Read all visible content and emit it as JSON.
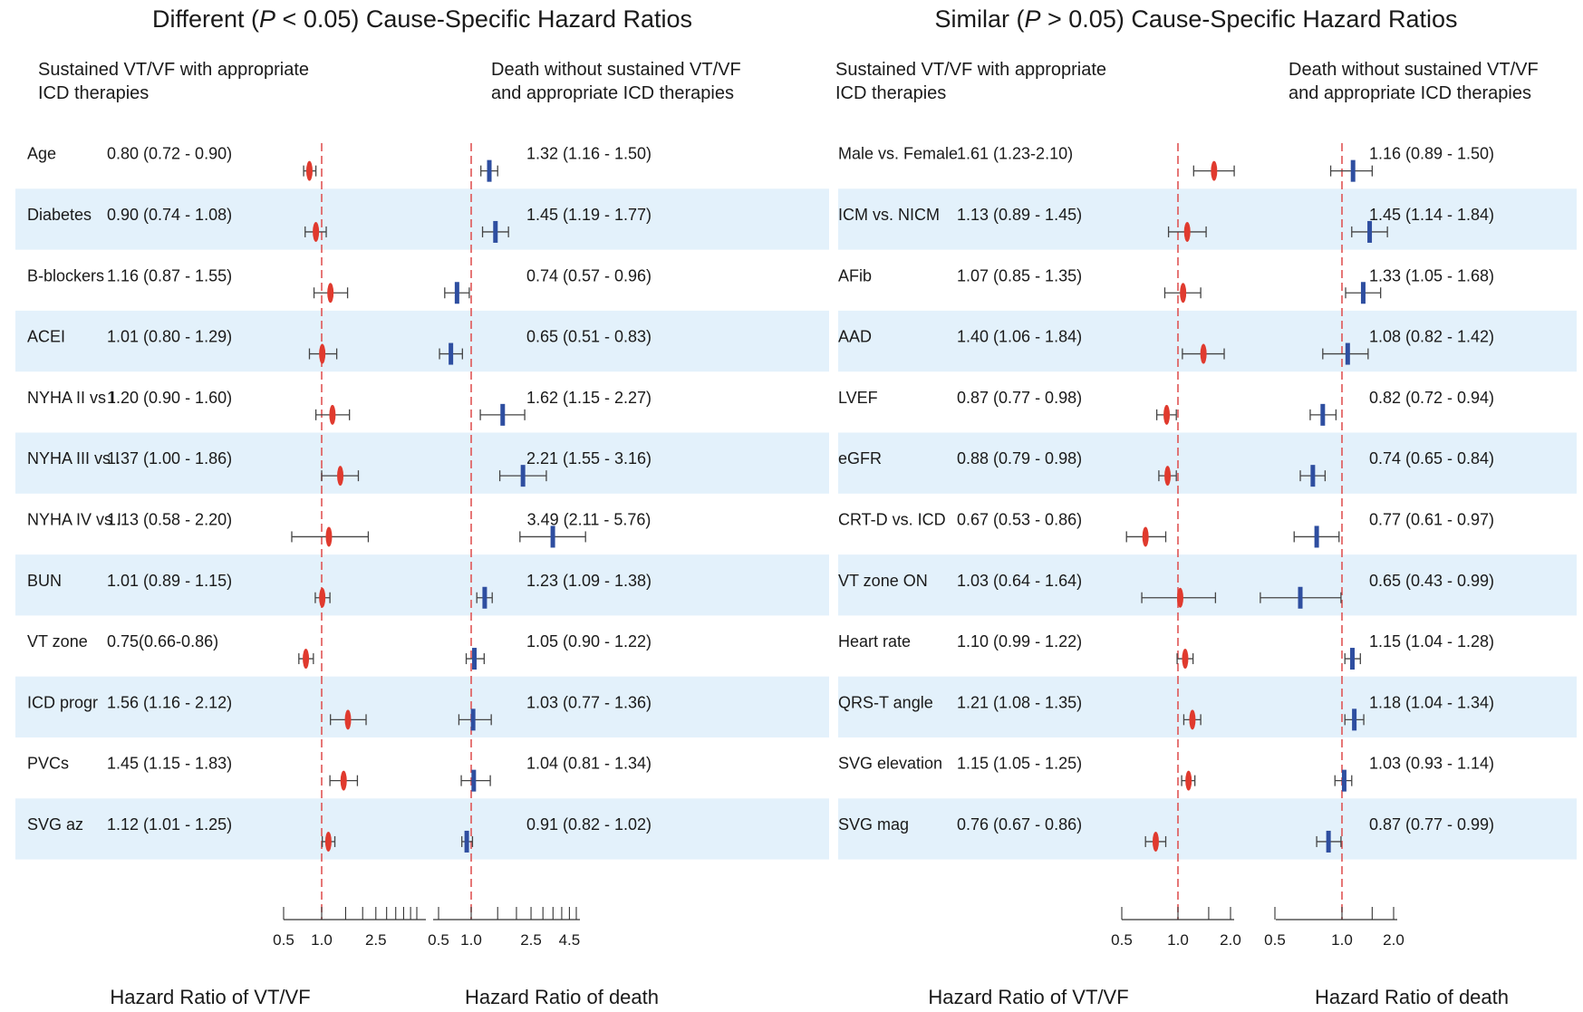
{
  "colors": {
    "band": "#e3f1fb",
    "vtvf": "#e03a2e",
    "death": "#2e4ea0",
    "refline": "#e05555",
    "axis": "#333333"
  },
  "panels": {
    "left_title": {
      "prefix": "Different (",
      "p": "P",
      "suffix": " < 0.05)  Cause-Specific Hazard Ratios"
    },
    "right_title": {
      "prefix": "Similar (",
      "p": "P",
      "suffix": " > 0.05) Cause-Specific Hazard Ratios"
    }
  },
  "headers": {
    "vtvf": [
      "Sustained VT/VF with appropriate",
      "ICD therapies"
    ],
    "death": [
      "Death without sustained VT/VF",
      "and appropriate ICD therapies"
    ]
  },
  "xlabels": {
    "vtvf": "Hazard Ratio of  VT/VF",
    "death": "Hazard Ratio of  death"
  },
  "chart_data": [
    {
      "type": "forest",
      "title": "Different (P < 0.05)  Cause-Specific Hazard Ratios",
      "reference_line": 1.0,
      "vtvf_axis": {
        "ticks": [
          0.5,
          1.0,
          2.5
        ],
        "tick_labels": [
          "0.5",
          "1.0",
          "2.5"
        ]
      },
      "death_axis": {
        "ticks": [
          0.5,
          1.0,
          2.5,
          4.5
        ],
        "tick_labels": [
          "0.5",
          "1.0",
          "2.5",
          "4.5"
        ]
      },
      "rows": [
        {
          "label": "Age",
          "vtvf": {
            "text": "0.80  (0.72  - 0.90)",
            "hr": 0.8,
            "lo": 0.72,
            "hi": 0.9
          },
          "death": {
            "text": "1.32 (1.16 - 1.50)",
            "hr": 1.32,
            "lo": 1.16,
            "hi": 1.5
          }
        },
        {
          "label": "Diabetes",
          "vtvf": {
            "text": "0.90 (0.74 - 1.08)",
            "hr": 0.9,
            "lo": 0.74,
            "hi": 1.08
          },
          "death": {
            "text": "1.45 (1.19 - 1.77)",
            "hr": 1.45,
            "lo": 1.19,
            "hi": 1.77
          }
        },
        {
          "label": "B-blockers",
          "vtvf": {
            "text": "1.16 (0.87 - 1.55)",
            "hr": 1.16,
            "lo": 0.87,
            "hi": 1.55
          },
          "death": {
            "text": "0.74 (0.57 - 0.96)",
            "hr": 0.74,
            "lo": 0.57,
            "hi": 0.96
          }
        },
        {
          "label": "ACEI",
          "vtvf": {
            "text": "1.01 (0.80 - 1.29)",
            "hr": 1.01,
            "lo": 0.8,
            "hi": 1.29
          },
          "death": {
            "text": "0.65 (0.51 - 0.83)",
            "hr": 0.65,
            "lo": 0.51,
            "hi": 0.83
          }
        },
        {
          "label": "NYHA II vs I",
          "vtvf": {
            "text": "1.20 (0.90 - 1.60)",
            "hr": 1.2,
            "lo": 0.9,
            "hi": 1.6
          },
          "death": {
            "text": "1.62 (1.15 - 2.27)",
            "hr": 1.62,
            "lo": 1.15,
            "hi": 2.27
          }
        },
        {
          "label": "NYHA III vs I",
          "vtvf": {
            "text": "1.37 (1.00 - 1.86)",
            "hr": 1.37,
            "lo": 1.0,
            "hi": 1.86
          },
          "death": {
            "text": "2.21 (1.55 - 3.16)",
            "hr": 2.21,
            "lo": 1.55,
            "hi": 3.16
          }
        },
        {
          "label": "NYHA IV vs I",
          "vtvf": {
            "text": "1.13 (0.58 - 2.20)",
            "hr": 1.13,
            "lo": 0.58,
            "hi": 2.2
          },
          "death": {
            "text": "3.49 (2.11 - 5.76)",
            "hr": 3.49,
            "lo": 2.11,
            "hi": 5.76
          }
        },
        {
          "label": "BUN",
          "vtvf": {
            "text": "1.01 (0.89 - 1.15)",
            "hr": 1.01,
            "lo": 0.89,
            "hi": 1.15
          },
          "death": {
            "text": "1.23 (1.09 - 1.38)",
            "hr": 1.23,
            "lo": 1.09,
            "hi": 1.38
          }
        },
        {
          "label": "VT zone",
          "vtvf": {
            "text": "0.75(0.66-0.86)",
            "hr": 0.75,
            "lo": 0.66,
            "hi": 0.86
          },
          "death": {
            "text": "1.05 (0.90 - 1.22)",
            "hr": 1.05,
            "lo": 0.9,
            "hi": 1.22
          }
        },
        {
          "label": "ICD progr",
          "vtvf": {
            "text": "1.56 (1.16 - 2.12)",
            "hr": 1.56,
            "lo": 1.16,
            "hi": 2.12
          },
          "death": {
            "text": "1.03 (0.77 - 1.36)",
            "hr": 1.03,
            "lo": 0.77,
            "hi": 1.36
          }
        },
        {
          "label": "PVCs",
          "vtvf": {
            "text": "1.45 (1.15 - 1.83)",
            "hr": 1.45,
            "lo": 1.15,
            "hi": 1.83
          },
          "death": {
            "text": "1.04 (0.81 - 1.34)",
            "hr": 1.04,
            "lo": 0.81,
            "hi": 1.34
          }
        },
        {
          "label": "SVG az",
          "vtvf": {
            "text": "1.12 (1.01 - 1.25)",
            "hr": 1.12,
            "lo": 1.01,
            "hi": 1.25
          },
          "death": {
            "text": "0.91 (0.82 - 1.02)",
            "hr": 0.91,
            "lo": 0.82,
            "hi": 1.02
          }
        }
      ]
    },
    {
      "type": "forest",
      "title": "Similar (P > 0.05) Cause-Specific Hazard Ratios",
      "reference_line": 1.0,
      "vtvf_axis": {
        "ticks": [
          0.5,
          1.0,
          2.0
        ],
        "tick_labels": [
          "0.5",
          "1.0",
          "2.0"
        ]
      },
      "death_axis": {
        "ticks": [
          0.5,
          1.0,
          2.0
        ],
        "tick_labels": [
          "0.5",
          "1.0",
          "2.0"
        ]
      },
      "rows": [
        {
          "label": "Male vs. Female",
          "vtvf": {
            "text": "1.61 (1.23-2.10)",
            "hr": 1.61,
            "lo": 1.23,
            "hi": 2.1
          },
          "death": {
            "text": "1.16 (0.89 - 1.50)",
            "hr": 1.16,
            "lo": 0.89,
            "hi": 1.5
          }
        },
        {
          "label": "ICM vs. NICM",
          "vtvf": {
            "text": "1.13 (0.89 - 1.45)",
            "hr": 1.13,
            "lo": 0.89,
            "hi": 1.45
          },
          "death": {
            "text": "1.45 (1.14 - 1.84)",
            "hr": 1.45,
            "lo": 1.14,
            "hi": 1.84
          }
        },
        {
          "label": "AFib",
          "vtvf": {
            "text": "1.07 (0.85 - 1.35)",
            "hr": 1.07,
            "lo": 0.85,
            "hi": 1.35
          },
          "death": {
            "text": "1.33 (1.05 - 1.68)",
            "hr": 1.33,
            "lo": 1.05,
            "hi": 1.68
          }
        },
        {
          "label": "AAD",
          "vtvf": {
            "text": "1.40 (1.06 - 1.84)",
            "hr": 1.4,
            "lo": 1.06,
            "hi": 1.84
          },
          "death": {
            "text": "1.08 (0.82 - 1.42)",
            "hr": 1.08,
            "lo": 0.82,
            "hi": 1.42
          }
        },
        {
          "label": "LVEF",
          "vtvf": {
            "text": "0.87 (0.77  - 0.98)",
            "hr": 0.87,
            "lo": 0.77,
            "hi": 0.98
          },
          "death": {
            "text": "0.82 (0.72 - 0.94)",
            "hr": 0.82,
            "lo": 0.72,
            "hi": 0.94
          }
        },
        {
          "label": "eGFR",
          "vtvf": {
            "text": "0.88 (0.79 - 0.98)",
            "hr": 0.88,
            "lo": 0.79,
            "hi": 0.98
          },
          "death": {
            "text": "0.74 (0.65 - 0.84)",
            "hr": 0.74,
            "lo": 0.65,
            "hi": 0.84
          }
        },
        {
          "label": "CRT-D vs. ICD",
          "vtvf": {
            "text": "0.67 (0.53 - 0.86)",
            "hr": 0.67,
            "lo": 0.53,
            "hi": 0.86
          },
          "death": {
            "text": "0.77 (0.61 - 0.97)",
            "hr": 0.77,
            "lo": 0.61,
            "hi": 0.97
          }
        },
        {
          "label": "VT zone ON",
          "vtvf": {
            "text": "1.03 (0.64 - 1.64)",
            "hr": 1.03,
            "lo": 0.64,
            "hi": 1.64
          },
          "death": {
            "text": "0.65 (0.43 - 0.99)",
            "hr": 0.65,
            "lo": 0.43,
            "hi": 0.99
          }
        },
        {
          "label": "Heart rate",
          "vtvf": {
            "text": "1.10 (0.99 - 1.22)",
            "hr": 1.1,
            "lo": 0.99,
            "hi": 1.22
          },
          "death": {
            "text": "1.15 (1.04 - 1.28)",
            "hr": 1.15,
            "lo": 1.04,
            "hi": 1.28
          }
        },
        {
          "label": "QRS-T angle",
          "vtvf": {
            "text": "1.21 (1.08 - 1.35)",
            "hr": 1.21,
            "lo": 1.08,
            "hi": 1.35
          },
          "death": {
            "text": "1.18 (1.04 - 1.34)",
            "hr": 1.18,
            "lo": 1.04,
            "hi": 1.34
          }
        },
        {
          "label": "SVG elevation",
          "vtvf": {
            "text": "1.15 (1.05 - 1.25)",
            "hr": 1.15,
            "lo": 1.05,
            "hi": 1.25
          },
          "death": {
            "text": "1.03 (0.93 - 1.14)",
            "hr": 1.03,
            "lo": 0.93,
            "hi": 1.14
          }
        },
        {
          "label": "SVG mag",
          "vtvf": {
            "text": "0.76 (0.67 - 0.86)",
            "hr": 0.76,
            "lo": 0.67,
            "hi": 0.86
          },
          "death": {
            "text": "0.87 (0.77 - 0.99)",
            "hr": 0.87,
            "lo": 0.77,
            "hi": 0.99
          }
        }
      ]
    }
  ]
}
